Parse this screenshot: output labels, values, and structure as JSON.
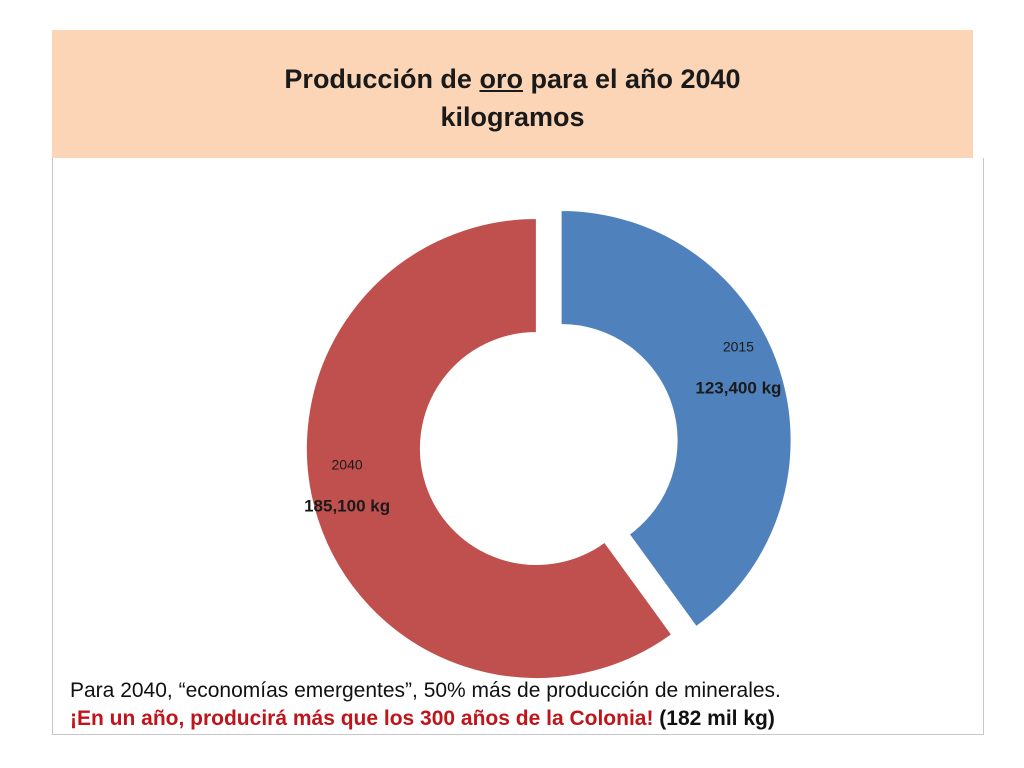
{
  "title": {
    "pre": "Producción de ",
    "underlined": "oro",
    "post": " para el año 2040",
    "line2": "kilogramos"
  },
  "colors": {
    "title_bg": "#fbd5b5",
    "series_2015": "#4f81bd",
    "series_2040": "#c0504d",
    "highlight_text": "#c0141b"
  },
  "chart_data": {
    "type": "pie",
    "subtype": "doughnut-exploded",
    "slices": [
      {
        "category": "2015",
        "value": 123400,
        "label": "123,400 kg",
        "color": "#4f81bd"
      },
      {
        "category": "2040",
        "value": 185100,
        "label": "185,100 kg",
        "color": "#c0504d"
      }
    ],
    "legend": "none"
  },
  "caption": {
    "line1": "Para 2040, “economías emergentes”, 50% más de producción de minerales.",
    "line2_highlight": "¡En un año, producirá más que los 300 años de la Colonia!",
    "line2_rest": " (182 mil kg)"
  }
}
